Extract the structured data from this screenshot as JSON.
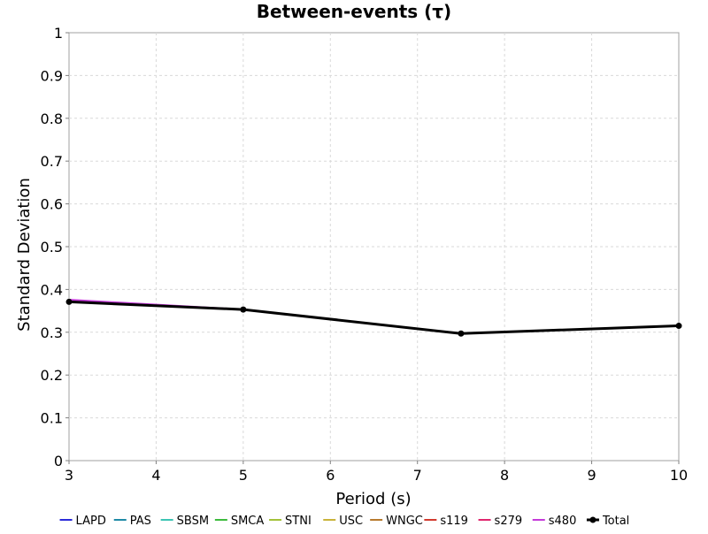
{
  "chart_data": {
    "type": "line",
    "title": "Between-events (τ)",
    "xlabel": "Period (s)",
    "ylabel": "Standard Deviation",
    "xlim": [
      3,
      10
    ],
    "ylim": [
      0,
      1
    ],
    "xticks": [
      "3",
      "4",
      "5",
      "6",
      "7",
      "8",
      "9",
      "10"
    ],
    "yticks": [
      "0",
      "0.1",
      "0.2",
      "0.3",
      "0.4",
      "0.5",
      "0.6",
      "0.7",
      "0.8",
      "0.9",
      "1"
    ],
    "grid": true,
    "legend_position": "bottom",
    "x": [
      3,
      5,
      7.5,
      10
    ],
    "series": [
      {
        "name": "LAPD",
        "color": "#2b2bd9",
        "values": [
          0.372,
          0.353,
          0.297,
          0.315
        ]
      },
      {
        "name": "PAS",
        "color": "#1f8aa6",
        "values": [
          0.372,
          0.353,
          0.297,
          0.315
        ]
      },
      {
        "name": "SBSM",
        "color": "#3cc4b4",
        "values": [
          0.372,
          0.353,
          0.297,
          0.315
        ]
      },
      {
        "name": "SMCA",
        "color": "#3dbb3d",
        "values": [
          0.372,
          0.353,
          0.297,
          0.315
        ]
      },
      {
        "name": "STNI",
        "color": "#a3c23a",
        "values": [
          0.372,
          0.353,
          0.297,
          0.315
        ]
      },
      {
        "name": "USC",
        "color": "#c9b33a",
        "values": [
          0.372,
          0.353,
          0.297,
          0.315
        ]
      },
      {
        "name": "WNGC",
        "color": "#b87a2e",
        "values": [
          0.372,
          0.353,
          0.297,
          0.315
        ]
      },
      {
        "name": "s119",
        "color": "#d23a2e",
        "values": [
          0.373,
          0.353,
          0.297,
          0.315
        ]
      },
      {
        "name": "s279",
        "color": "#e0266e",
        "values": [
          0.374,
          0.353,
          0.297,
          0.315
        ]
      },
      {
        "name": "s480",
        "color": "#c43ad9",
        "values": [
          0.376,
          0.353,
          0.297,
          0.315
        ]
      },
      {
        "name": "Total",
        "color": "#000000",
        "values": [
          0.371,
          0.353,
          0.297,
          0.315
        ],
        "markers": true
      }
    ]
  }
}
